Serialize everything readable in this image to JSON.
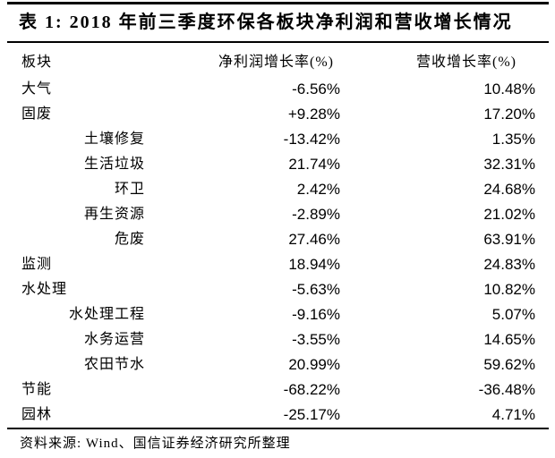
{
  "title": "表 1: 2018 年前三季度环保各板块净利润和营收增长情况",
  "table": {
    "columns": [
      "板块",
      "净利润增长率(%)",
      "营收增长率(%)"
    ],
    "rows": [
      {
        "name": "大气",
        "indent": false,
        "profit": "-6.56%",
        "revenue": "10.48%"
      },
      {
        "name": "固废",
        "indent": false,
        "profit": "+9.28%",
        "revenue": "17.20%"
      },
      {
        "name": "土壤修复",
        "indent": true,
        "profit": "-13.42%",
        "revenue": "1.35%"
      },
      {
        "name": "生活垃圾",
        "indent": true,
        "profit": "21.74%",
        "revenue": "32.31%"
      },
      {
        "name": "环卫",
        "indent": true,
        "profit": "2.42%",
        "revenue": "24.68%"
      },
      {
        "name": "再生资源",
        "indent": true,
        "profit": "-2.89%",
        "revenue": "21.02%"
      },
      {
        "name": "危废",
        "indent": true,
        "profit": "27.46%",
        "revenue": "63.91%"
      },
      {
        "name": "监测",
        "indent": false,
        "profit": "18.94%",
        "revenue": "24.83%"
      },
      {
        "name": "水处理",
        "indent": false,
        "profit": "-5.63%",
        "revenue": "10.82%"
      },
      {
        "name": "水处理工程",
        "indent": true,
        "profit": "-9.16%",
        "revenue": "5.07%"
      },
      {
        "name": "水务运营",
        "indent": true,
        "profit": "-3.55%",
        "revenue": "14.65%"
      },
      {
        "name": "农田节水",
        "indent": true,
        "profit": "20.99%",
        "revenue": "59.62%"
      },
      {
        "name": "节能",
        "indent": false,
        "profit": "-68.22%",
        "revenue": "-36.48%"
      },
      {
        "name": "园林",
        "indent": false,
        "profit": "-25.17%",
        "revenue": "4.71%"
      }
    ]
  },
  "footer": {
    "source": "资料来源: Wind、国信证券经济研究所整理"
  },
  "colors": {
    "text": "#000000",
    "background": "#ffffff",
    "rule": "#000000"
  }
}
